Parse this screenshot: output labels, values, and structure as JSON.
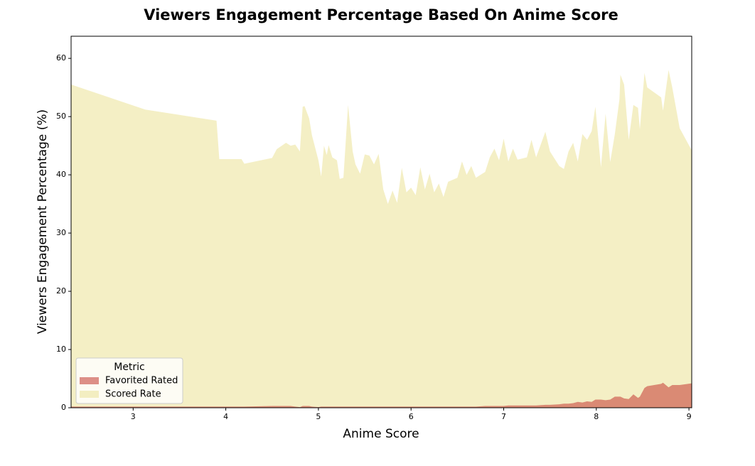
{
  "chart_data": {
    "type": "area",
    "title": "Viewers Engagement Percentage Based On Anime Score",
    "x_label": "Anime Score",
    "y_label": "Viewers Engagement Percentage (%)",
    "legend_title": "Metric",
    "legend": "lower left",
    "grid": false,
    "alpha": 0.6,
    "xlim": [
      2.33,
      9.03
    ],
    "ylim": [
      0,
      63.8
    ],
    "xticks": [
      3,
      4,
      5,
      6,
      7,
      8,
      9
    ],
    "yticks": [
      0,
      10,
      20,
      30,
      40,
      50,
      60
    ],
    "x": [
      2.33,
      3.13,
      3.9,
      3.93,
      4.17,
      4.2,
      4.5,
      4.55,
      4.65,
      4.7,
      4.75,
      4.8,
      4.83,
      4.85,
      4.9,
      4.93,
      5.0,
      5.03,
      5.06,
      5.09,
      5.11,
      5.15,
      5.2,
      5.23,
      5.27,
      5.32,
      5.37,
      5.4,
      5.45,
      5.5,
      5.55,
      5.6,
      5.65,
      5.7,
      5.75,
      5.8,
      5.85,
      5.9,
      5.95,
      6.0,
      6.05,
      6.1,
      6.15,
      6.2,
      6.25,
      6.3,
      6.35,
      6.4,
      6.5,
      6.55,
      6.6,
      6.65,
      6.7,
      6.8,
      6.85,
      6.9,
      6.95,
      7.0,
      7.05,
      7.1,
      7.15,
      7.25,
      7.3,
      7.35,
      7.45,
      7.5,
      7.6,
      7.65,
      7.7,
      7.75,
      7.8,
      7.85,
      7.9,
      7.95,
      7.99,
      8.05,
      8.1,
      8.15,
      8.2,
      8.25,
      8.26,
      8.3,
      8.35,
      8.4,
      8.45,
      8.47,
      8.52,
      8.55,
      8.7,
      8.72,
      8.78,
      8.82,
      8.9,
      9.03
    ],
    "series": [
      {
        "name": "Favorited Rated",
        "color": "#c8463e",
        "values": [
          0.2,
          0.2,
          0.2,
          0.2,
          0.2,
          0.2,
          0.3,
          0.3,
          0.3,
          0.3,
          0.2,
          0.1,
          0.3,
          0.3,
          0.3,
          0.2,
          0.1,
          0.2,
          0.2,
          0.2,
          0.2,
          0.2,
          0.2,
          0.2,
          0.2,
          0.2,
          0.2,
          0.2,
          0.2,
          0.2,
          0.2,
          0.2,
          0.2,
          0.2,
          0.2,
          0.2,
          0.2,
          0.2,
          0.2,
          0.2,
          0.2,
          0.2,
          0.2,
          0.2,
          0.2,
          0.2,
          0.2,
          0.2,
          0.2,
          0.2,
          0.2,
          0.2,
          0.2,
          0.3,
          0.3,
          0.3,
          0.3,
          0.3,
          0.4,
          0.4,
          0.4,
          0.4,
          0.4,
          0.4,
          0.5,
          0.5,
          0.6,
          0.7,
          0.7,
          0.8,
          1.0,
          0.9,
          1.1,
          1.0,
          1.4,
          1.4,
          1.3,
          1.4,
          1.9,
          1.9,
          1.9,
          1.6,
          1.5,
          2.3,
          1.7,
          1.9,
          3.4,
          3.7,
          4.1,
          4.3,
          3.5,
          3.9,
          3.9,
          4.2
        ]
      },
      {
        "name": "Scored Rate",
        "color": "#ede59e",
        "values": [
          55.5,
          51.2,
          49.3,
          42.7,
          42.7,
          41.9,
          42.9,
          44.4,
          45.5,
          45.0,
          45.2,
          44.0,
          51.7,
          51.8,
          49.7,
          46.8,
          42.5,
          39.7,
          45.0,
          43.4,
          45.1,
          43.0,
          42.5,
          39.3,
          39.5,
          52.0,
          44.0,
          41.8,
          40.2,
          43.5,
          43.3,
          41.8,
          43.6,
          37.5,
          35.0,
          37.3,
          35.2,
          41.2,
          37.0,
          37.8,
          36.5,
          41.3,
          37.5,
          40.2,
          37.0,
          38.5,
          36.2,
          38.8,
          39.5,
          42.3,
          40.0,
          41.5,
          39.5,
          40.5,
          43.0,
          44.5,
          42.5,
          46.2,
          42.3,
          44.5,
          42.6,
          43.0,
          46.0,
          43.0,
          47.4,
          44.0,
          41.5,
          41.0,
          44.0,
          45.5,
          42.3,
          47.0,
          46.0,
          47.5,
          51.7,
          41.3,
          50.5,
          42.2,
          47.0,
          53.0,
          57.2,
          55.5,
          46.0,
          52.0,
          51.5,
          47.8,
          57.5,
          55.0,
          53.3,
          51.0,
          58.0,
          55.0,
          48.0,
          44.2
        ]
      }
    ]
  }
}
